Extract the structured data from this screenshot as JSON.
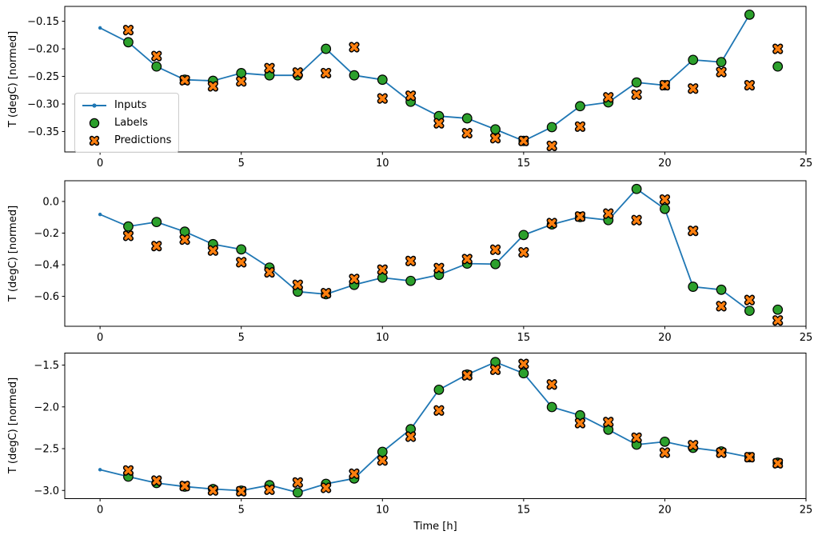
{
  "figure": {
    "background": "#ffffff",
    "xlabel": "Time [h]",
    "ylabel": "T (degC) [normed]"
  },
  "colors": {
    "inputs": "#1f77b4",
    "labels": "#2ca02c",
    "predictions": "#ff7f0e",
    "marker_edge": "#000000",
    "axis": "#000000",
    "tick_label": "#000000",
    "legend_border": "#cccccc"
  },
  "legend": {
    "position": "center left of first subplot",
    "items": [
      {
        "label": "Inputs",
        "marker": "line-dot"
      },
      {
        "label": "Labels",
        "marker": "circle"
      },
      {
        "label": "Predictions",
        "marker": "X"
      }
    ]
  },
  "chart_data": [
    {
      "type": "line",
      "title": "",
      "xlabel": "",
      "ylabel": "T (degC) [normed]",
      "xlim": [
        -1.25,
        25.0
      ],
      "ylim": [
        -0.387,
        -0.123
      ],
      "xticks": [
        0,
        5,
        10,
        15,
        20,
        25
      ],
      "yticks": [
        -0.15,
        -0.2,
        -0.25,
        -0.3,
        -0.35
      ],
      "ytick_decimals": 2,
      "grid": false,
      "legend_visible": true,
      "series": [
        {
          "name": "Inputs",
          "type": "line",
          "marker": "dot",
          "x": [
            0,
            1,
            2,
            3,
            4,
            5,
            6,
            7,
            8,
            9,
            10,
            11,
            12,
            13,
            14,
            15,
            16,
            17,
            18,
            19,
            20,
            21,
            22,
            23
          ],
          "y": [
            -0.162,
            -0.188,
            -0.232,
            -0.256,
            -0.258,
            -0.244,
            -0.248,
            -0.248,
            -0.2,
            -0.248,
            -0.256,
            -0.296,
            -0.322,
            -0.326,
            -0.346,
            -0.367,
            -0.342,
            -0.304,
            -0.297,
            -0.261,
            -0.266,
            -0.22,
            -0.224,
            -0.138
          ]
        },
        {
          "name": "Labels",
          "type": "scatter",
          "marker": "circle",
          "x": [
            1,
            2,
            3,
            4,
            5,
            6,
            7,
            8,
            9,
            10,
            11,
            12,
            13,
            14,
            15,
            16,
            17,
            18,
            19,
            20,
            21,
            22,
            23,
            24
          ],
          "y": [
            -0.188,
            -0.232,
            -0.256,
            -0.258,
            -0.244,
            -0.248,
            -0.248,
            -0.2,
            -0.248,
            -0.256,
            -0.296,
            -0.322,
            -0.326,
            -0.346,
            -0.367,
            -0.342,
            -0.304,
            -0.297,
            -0.261,
            -0.266,
            -0.22,
            -0.224,
            -0.138,
            -0.232
          ]
        },
        {
          "name": "Predictions",
          "type": "scatter",
          "marker": "X",
          "x": [
            1,
            2,
            3,
            4,
            5,
            6,
            7,
            8,
            9,
            10,
            11,
            12,
            13,
            14,
            15,
            16,
            17,
            18,
            19,
            20,
            21,
            22,
            23,
            24
          ],
          "y": [
            -0.166,
            -0.213,
            -0.257,
            -0.268,
            -0.259,
            -0.235,
            -0.243,
            -0.244,
            -0.197,
            -0.29,
            -0.285,
            -0.335,
            -0.353,
            -0.362,
            -0.367,
            -0.376,
            -0.341,
            -0.288,
            -0.283,
            -0.266,
            -0.272,
            -0.242,
            -0.266,
            -0.2
          ]
        }
      ]
    },
    {
      "type": "line",
      "title": "",
      "xlabel": "",
      "ylabel": "T (degC) [normed]",
      "xlim": [
        -1.25,
        25.0
      ],
      "ylim": [
        -0.789,
        0.131
      ],
      "xticks": [
        0,
        5,
        10,
        15,
        20,
        25
      ],
      "yticks": [
        0.0,
        -0.2,
        -0.4,
        -0.6
      ],
      "ytick_decimals": 1,
      "grid": false,
      "legend_visible": false,
      "series": [
        {
          "name": "Inputs",
          "type": "line",
          "marker": "dot",
          "x": [
            0,
            1,
            2,
            3,
            4,
            5,
            6,
            7,
            8,
            9,
            10,
            11,
            12,
            13,
            14,
            15,
            16,
            17,
            18,
            19,
            20,
            21,
            22,
            23
          ],
          "y": [
            -0.082,
            -0.158,
            -0.13,
            -0.191,
            -0.27,
            -0.303,
            -0.418,
            -0.57,
            -0.586,
            -0.527,
            -0.482,
            -0.502,
            -0.464,
            -0.393,
            -0.396,
            -0.212,
            -0.145,
            -0.098,
            -0.118,
            0.079,
            -0.047,
            -0.539,
            -0.558,
            -0.691
          ]
        },
        {
          "name": "Labels",
          "type": "scatter",
          "marker": "circle",
          "x": [
            1,
            2,
            3,
            4,
            5,
            6,
            7,
            8,
            9,
            10,
            11,
            12,
            13,
            14,
            15,
            16,
            17,
            18,
            19,
            20,
            21,
            22,
            23,
            24
          ],
          "y": [
            -0.158,
            -0.13,
            -0.191,
            -0.27,
            -0.303,
            -0.418,
            -0.57,
            -0.586,
            -0.527,
            -0.482,
            -0.502,
            -0.464,
            -0.393,
            -0.396,
            -0.212,
            -0.145,
            -0.098,
            -0.118,
            0.079,
            -0.047,
            -0.539,
            -0.558,
            -0.691,
            -0.684
          ]
        },
        {
          "name": "Predictions",
          "type": "scatter",
          "marker": "X",
          "x": [
            1,
            2,
            3,
            4,
            5,
            6,
            7,
            8,
            9,
            10,
            11,
            12,
            13,
            14,
            15,
            16,
            17,
            18,
            19,
            20,
            21,
            22,
            23,
            24
          ],
          "y": [
            -0.217,
            -0.282,
            -0.241,
            -0.31,
            -0.384,
            -0.448,
            -0.527,
            -0.58,
            -0.49,
            -0.431,
            -0.376,
            -0.421,
            -0.364,
            -0.305,
            -0.322,
            -0.137,
            -0.095,
            -0.077,
            -0.118,
            0.012,
            -0.186,
            -0.662,
            -0.623,
            -0.752
          ]
        }
      ]
    },
    {
      "type": "line",
      "title": "",
      "xlabel": "Time [h]",
      "ylabel": "T (degC) [normed]",
      "xlim": [
        -1.25,
        25.0
      ],
      "ylim": [
        -3.098,
        -1.356
      ],
      "xticks": [
        0,
        5,
        10,
        15,
        20,
        25
      ],
      "yticks": [
        -1.5,
        -2.0,
        -2.5,
        -3.0
      ],
      "ytick_decimals": 1,
      "grid": false,
      "legend_visible": false,
      "series": [
        {
          "name": "Inputs",
          "type": "line",
          "marker": "dot",
          "x": [
            0,
            1,
            2,
            3,
            4,
            5,
            6,
            7,
            8,
            9,
            10,
            11,
            12,
            13,
            14,
            15,
            16,
            17,
            18,
            19,
            20,
            21,
            22,
            23
          ],
          "y": [
            -2.752,
            -2.835,
            -2.911,
            -2.954,
            -2.983,
            -3.002,
            -2.937,
            -3.025,
            -2.921,
            -2.857,
            -2.538,
            -2.267,
            -1.795,
            -1.613,
            -1.464,
            -1.598,
            -2.002,
            -2.101,
            -2.273,
            -2.452,
            -2.417,
            -2.49,
            -2.533,
            -2.602
          ]
        },
        {
          "name": "Labels",
          "type": "scatter",
          "marker": "circle",
          "x": [
            1,
            2,
            3,
            4,
            5,
            6,
            7,
            8,
            9,
            10,
            11,
            12,
            13,
            14,
            15,
            16,
            17,
            18,
            19,
            20,
            21,
            22,
            23,
            24
          ],
          "y": [
            -2.835,
            -2.911,
            -2.954,
            -2.983,
            -3.002,
            -2.937,
            -3.025,
            -2.921,
            -2.857,
            -2.538,
            -2.267,
            -1.795,
            -1.613,
            -1.464,
            -1.598,
            -2.002,
            -2.101,
            -2.273,
            -2.452,
            -2.417,
            -2.49,
            -2.533,
            -2.602,
            -2.668
          ]
        },
        {
          "name": "Predictions",
          "type": "scatter",
          "marker": "X",
          "x": [
            1,
            2,
            3,
            4,
            5,
            6,
            7,
            8,
            9,
            10,
            11,
            12,
            13,
            14,
            15,
            16,
            17,
            18,
            19,
            20,
            21,
            22,
            23,
            24
          ],
          "y": [
            -2.761,
            -2.883,
            -2.947,
            -3.0,
            -3.01,
            -2.991,
            -2.905,
            -2.969,
            -2.8,
            -2.641,
            -2.356,
            -2.043,
            -1.622,
            -1.555,
            -1.486,
            -1.732,
            -2.194,
            -2.181,
            -2.369,
            -2.548,
            -2.459,
            -2.548,
            -2.602,
            -2.675
          ]
        }
      ]
    }
  ]
}
